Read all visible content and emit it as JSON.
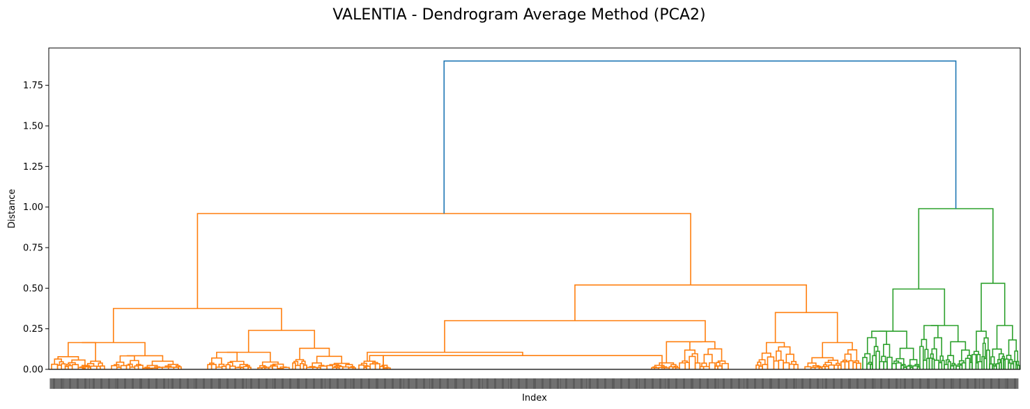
{
  "chart_data": {
    "type": "dendrogram",
    "title": "VALENTIA - Dendrogram Average Method (PCA2)",
    "xlabel": "Index",
    "ylabel": "Distance",
    "ylim": [
      0,
      1.98
    ],
    "yticks": [
      0.0,
      0.25,
      0.5,
      0.75,
      1.0,
      1.25,
      1.5,
      1.75
    ],
    "ytick_labels": [
      "0.00",
      "0.25",
      "0.50",
      "0.75",
      "1.00",
      "1.25",
      "1.50",
      "1.75"
    ],
    "colors": {
      "root": "#1f77b4",
      "cluster1": "#ff7f0e",
      "cluster2": "#2ca02c"
    },
    "root_merge_height": 1.9,
    "cluster1_merge_height": 0.96,
    "cluster2_merge_height": 0.99,
    "leaf_count_approx": 1400,
    "x_tick_labels": "dense, unreadable leaf indices"
  }
}
